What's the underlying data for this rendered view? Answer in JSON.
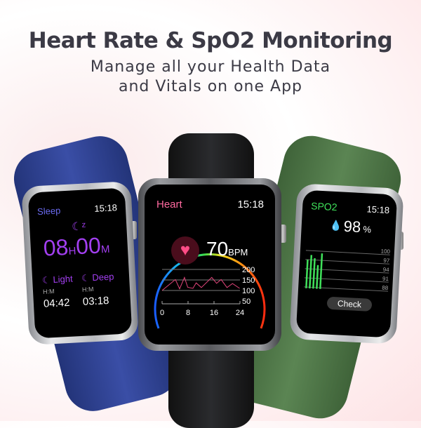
{
  "header": {
    "title": "Heart Rate & SpO2 Monitoring",
    "subtitle_line1": "Manage all your Health Data",
    "subtitle_line2": "and Vitals on one App"
  },
  "colors": {
    "left_band": "#2d3f8f",
    "center_band": "#1d1e21",
    "right_band": "#4a7044",
    "sleep_accent": "#a23ff0",
    "heart_accent": "#ff6aa0",
    "spo2_accent": "#3fe05a"
  },
  "sleep_watch": {
    "label": "Sleep",
    "time": "15:18",
    "icon": "moon-zzz-icon",
    "hours": "08",
    "h_unit": "H",
    "minutes": "00",
    "m_unit": "M",
    "light_label": "Light",
    "deep_label": "Deep",
    "light_unit": "H:M",
    "deep_unit": "H:M",
    "light_value": "04:42",
    "deep_value": "03:18"
  },
  "heart_watch": {
    "label": "Heart",
    "time": "15:18",
    "icon": "heart-icon",
    "bpm": "70",
    "bpm_unit": "BPM",
    "y_ticks": [
      "200",
      "150",
      "100",
      "50"
    ],
    "x_ticks": [
      "0",
      "8",
      "16",
      "24"
    ],
    "series": {
      "x": [
        0,
        4.1,
        5.4,
        6.9,
        7.9,
        9.5,
        10.5,
        12.1,
        15.3,
        16.8,
        18.2,
        20,
        21.7,
        23.9
      ],
      "y": [
        100,
        152,
        108,
        162,
        115,
        110,
        136,
        114,
        162,
        134,
        152,
        114,
        133,
        110
      ]
    }
  },
  "spo2_watch": {
    "label": "SPO2",
    "time": "15:18",
    "icon": "drop-icon",
    "value": "98",
    "unit": "%",
    "y_ticks": [
      "100",
      "97",
      "94",
      "91",
      "88"
    ],
    "bars": [
      97,
      98.6,
      97.6,
      95.4,
      99.3
    ],
    "check_label": "Check"
  }
}
